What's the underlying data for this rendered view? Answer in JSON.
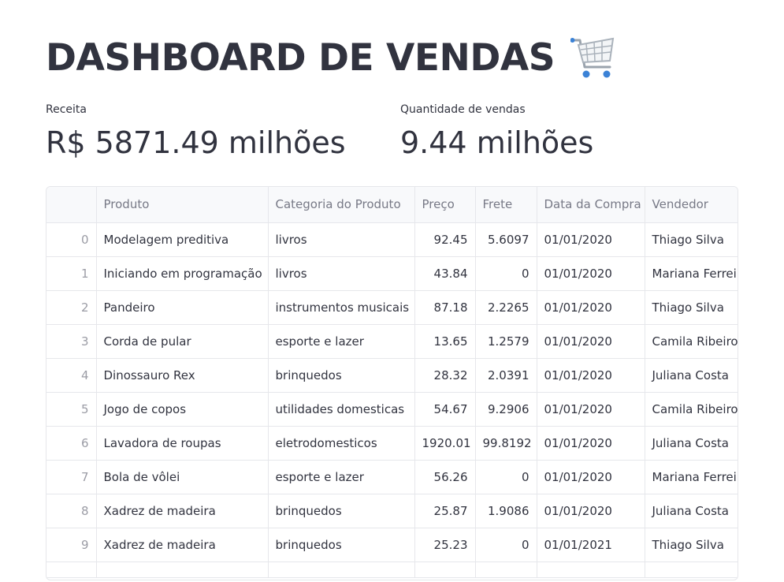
{
  "header": {
    "title": "DASHBOARD DE VENDAS",
    "icon": "shopping-cart-icon"
  },
  "metrics": [
    {
      "label": "Receita",
      "value": "R$ 5871.49 milhões"
    },
    {
      "label": "Quantidade de vendas",
      "value": "9.44 milhões"
    }
  ],
  "table": {
    "columns": [
      "",
      "Produto",
      "Categoria do Produto",
      "Preço",
      "Frete",
      "Data da Compra",
      "Vendedor"
    ],
    "rows": [
      [
        "0",
        "Modelagem preditiva",
        "livros",
        "92.45",
        "5.6097",
        "01/01/2020",
        "Thiago Silva"
      ],
      [
        "1",
        "Iniciando em programação",
        "livros",
        "43.84",
        "0",
        "01/01/2020",
        "Mariana Ferreira"
      ],
      [
        "2",
        "Pandeiro",
        "instrumentos musicais",
        "87.18",
        "2.2265",
        "01/01/2020",
        "Thiago Silva"
      ],
      [
        "3",
        "Corda de pular",
        "esporte e lazer",
        "13.65",
        "1.2579",
        "01/01/2020",
        "Camila Ribeiro"
      ],
      [
        "4",
        "Dinossauro Rex",
        "brinquedos",
        "28.32",
        "2.0391",
        "01/01/2020",
        "Juliana Costa"
      ],
      [
        "5",
        "Jogo de copos",
        "utilidades domesticas",
        "54.67",
        "9.2906",
        "01/01/2020",
        "Camila Ribeiro"
      ],
      [
        "6",
        "Lavadora de roupas",
        "eletrodomesticos",
        "1920.01",
        "99.8192",
        "01/01/2020",
        "Juliana Costa"
      ],
      [
        "7",
        "Bola de vôlei",
        "esporte e lazer",
        "56.26",
        "0",
        "01/01/2020",
        "Mariana Ferreira"
      ],
      [
        "8",
        "Xadrez de madeira",
        "brinquedos",
        "25.87",
        "1.9086",
        "01/01/2020",
        "Juliana Costa"
      ],
      [
        "9",
        "Xadrez de madeira",
        "brinquedos",
        "25.23",
        "0",
        "01/01/2021",
        "Thiago Silva"
      ]
    ]
  }
}
